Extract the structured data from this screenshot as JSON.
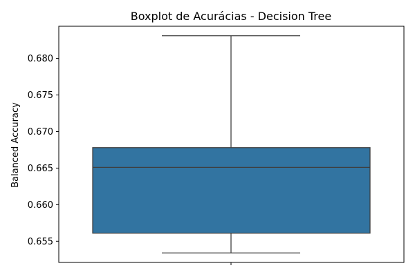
{
  "chart_data": {
    "type": "boxplot",
    "title": "Boxplot de Acurácias - Decision Tree",
    "xlabel": "",
    "ylabel": "Balanced Accuracy",
    "ylim": [
      0.6521,
      0.6844
    ],
    "yticks": [
      0.655,
      0.66,
      0.665,
      0.67,
      0.675,
      0.68
    ],
    "ytick_labels": [
      "0.655",
      "0.660",
      "0.665",
      "0.670",
      "0.675",
      "0.680"
    ],
    "grid": false,
    "legend": "none",
    "box": {
      "whisker_low": 0.6534,
      "q1": 0.6561,
      "median": 0.6651,
      "q3": 0.6678,
      "whisker_high": 0.6831
    },
    "colors": {
      "box_fill": "#3274a1",
      "lines": "#3f3f3f"
    }
  }
}
